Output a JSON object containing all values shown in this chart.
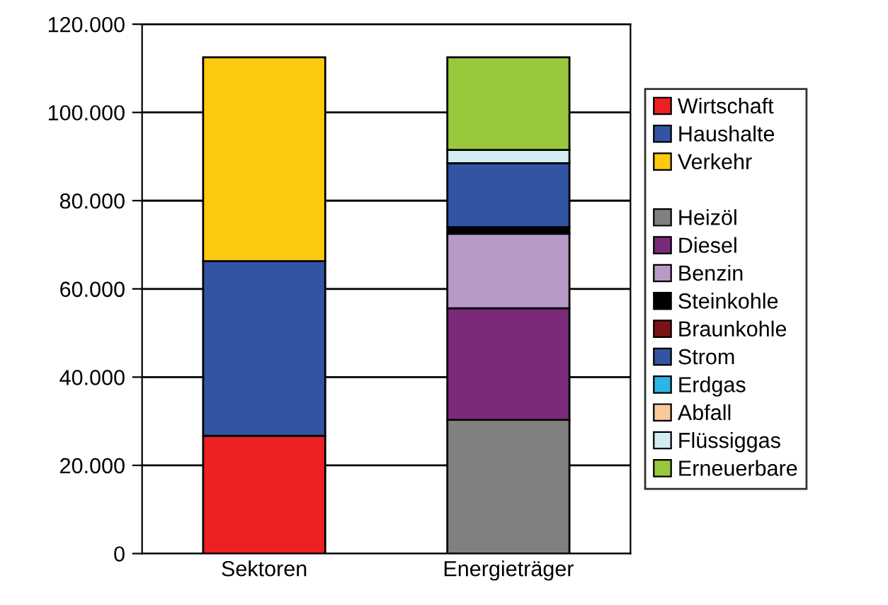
{
  "chart_data": {
    "type": "bar",
    "stacked": true,
    "categories": [
      "Sektoren",
      "Energieträger"
    ],
    "series": [
      {
        "name": "Wirtschaft",
        "color": "#ed2024",
        "values": [
          26700,
          null
        ]
      },
      {
        "name": "Haushalte",
        "color": "#3353a3",
        "values": [
          39600,
          null
        ]
      },
      {
        "name": "Verkehr",
        "color": "#fdca0f",
        "values": [
          46200,
          null
        ]
      },
      {
        "name": "Heizöl",
        "color": "#808080",
        "values": [
          null,
          30300
        ]
      },
      {
        "name": "Diesel",
        "color": "#7b2a7a",
        "values": [
          null,
          25300
        ]
      },
      {
        "name": "Benzin",
        "color": "#b89ac8",
        "values": [
          null,
          16900
        ]
      },
      {
        "name": "Steinkohle",
        "color": "#000000",
        "values": [
          null,
          1500
        ]
      },
      {
        "name": "Braunkohle",
        "color": "#7a1315",
        "values": [
          null,
          null
        ]
      },
      {
        "name": "Strom",
        "color": "#3353a3",
        "values": [
          null,
          14500
        ]
      },
      {
        "name": "Erdgas",
        "color": "#2bb5e8",
        "values": [
          null,
          null
        ]
      },
      {
        "name": "Abfall",
        "color": "#fbc89a",
        "values": [
          null,
          null
        ]
      },
      {
        "name": "Flüssiggas",
        "color": "#d2ecf2",
        "values": [
          null,
          3000
        ]
      },
      {
        "name": "Erneuerbare",
        "color": "#99c83c",
        "values": [
          null,
          21000
        ]
      }
    ],
    "ylim": [
      0,
      120000
    ],
    "yticks": [
      0,
      {
        "value": 20000,
        "label": "20.000"
      },
      {
        "value": 40000,
        "label": "40.000"
      },
      {
        "value": 60000,
        "label": "60.000"
      },
      {
        "value": 80000,
        "label": "80.000"
      },
      {
        "value": 100000,
        "label": "100.000"
      },
      {
        "value": 120000,
        "label": "120.000"
      }
    ],
    "grid": "y",
    "legend": "right"
  }
}
